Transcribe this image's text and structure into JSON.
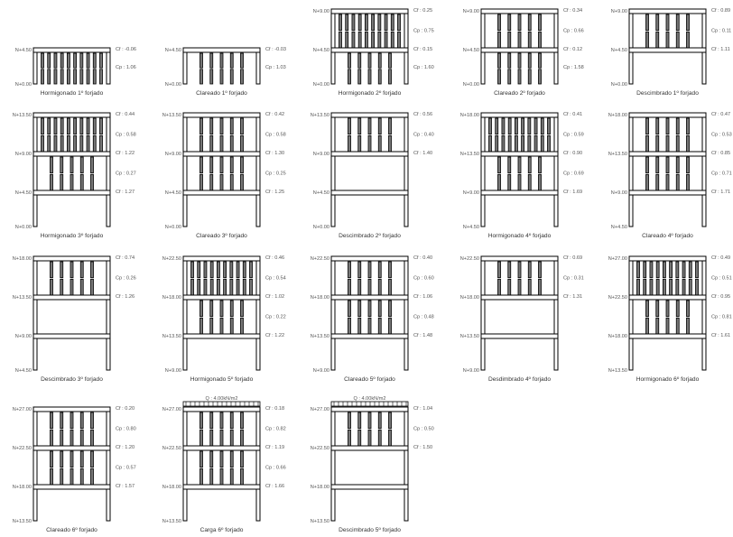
{
  "colors": {
    "line": "#000000",
    "prop_fill": "#777777",
    "text": "#555555"
  },
  "panels": [
    {
      "title": "Hormigonado 1º forjado",
      "levels": [
        "N+4.50",
        "N+0.00"
      ],
      "stories": [
        {
          "props": 10,
          "cp": "Cp : 1.06"
        }
      ],
      "cf": [
        "Cf : -0.06",
        null
      ]
    },
    {
      "title": "Clareado 1º forjado",
      "levels": [
        "N+4.50",
        "N+0.00"
      ],
      "stories": [
        {
          "props": 5,
          "cp": "Cp : 1.03"
        }
      ],
      "cf": [
        "Cf : -0.03",
        null
      ]
    },
    {
      "title": "Hormigonado 2º forjado",
      "levels": [
        "N+9.00",
        "N+4.50",
        "N+0.00"
      ],
      "stories": [
        {
          "props": 10,
          "cp": "Cp : 0.75"
        },
        {
          "props": 5,
          "cp": "Cp : 1.60"
        }
      ],
      "cf": [
        "Cf : 0.25",
        "Cf : 0.15",
        null
      ]
    },
    {
      "title": "Clareado 2º forjado",
      "levels": [
        "N+9.00",
        "N+4.50",
        "N+0.00"
      ],
      "stories": [
        {
          "props": 5,
          "cp": "Cp : 0.66"
        },
        {
          "props": 5,
          "cp": "Cp : 1.58"
        }
      ],
      "cf": [
        "Cf : 0.34",
        "Cf : 0.12",
        null
      ]
    },
    {
      "title": "Descimbrado 1º forjado",
      "levels": [
        "N+9.00",
        "N+4.50",
        "N+0.00"
      ],
      "stories": [
        {
          "props": 5,
          "cp": "Cp : 0.11"
        },
        {
          "props": 0,
          "cp": null
        }
      ],
      "cf": [
        "Cf : 0.89",
        "Cf : 1.11",
        null
      ]
    },
    {
      "title": "Hormigonado 3º forjado",
      "levels": [
        "N+13.50",
        "N+9.00",
        "N+4.50",
        "N+0.00"
      ],
      "stories": [
        {
          "props": 10,
          "cp": "Cp : 0.58"
        },
        {
          "props": 5,
          "cp": "Cp : 0.27"
        },
        {
          "props": 0,
          "cp": null
        }
      ],
      "cf": [
        "Cf : 0.44",
        "Cf : 1.22",
        "Cf : 1.27",
        null
      ]
    },
    {
      "title": "Clareado 3º forjado",
      "levels": [
        "N+13.50",
        "N+9.00",
        "N+4.50",
        "N+0.00"
      ],
      "stories": [
        {
          "props": 5,
          "cp": "Cp : 0.58"
        },
        {
          "props": 5,
          "cp": "Cp : 0.25"
        },
        {
          "props": 0,
          "cp": null
        }
      ],
      "cf": [
        "Cf : 0.42",
        "Cf : 1.30",
        "Cf : 1.25",
        null
      ]
    },
    {
      "title": "Descimbrado 2º forjado",
      "levels": [
        "N+13.50",
        "N+9.00",
        "N+4.50",
        "N+0.00"
      ],
      "stories": [
        {
          "props": 5,
          "cp": "Cp : 0.40"
        },
        {
          "props": 0,
          "cp": null
        },
        {
          "props": 0,
          "cp": null
        }
      ],
      "cf": [
        "Cf : 0.56",
        "Cf : 1.40",
        null,
        null
      ]
    },
    {
      "title": "Hormigonado 4º forjado",
      "levels": [
        "N+18.00",
        "N+13.50",
        "N+9.00",
        "N+4.50"
      ],
      "stories": [
        {
          "props": 10,
          "cp": "Cp : 0.59"
        },
        {
          "props": 5,
          "cp": "Cp : 0.69"
        },
        {
          "props": 0,
          "cp": null
        }
      ],
      "cf": [
        "Cf : 0.41",
        "Cf : 0.90",
        "Cf : 1.69",
        null
      ]
    },
    {
      "title": "Clareado 4º forjado",
      "levels": [
        "N+18.00",
        "N+13.50",
        "N+9.00",
        "N+4.50"
      ],
      "stories": [
        {
          "props": 5,
          "cp": "Cp : 0.53"
        },
        {
          "props": 5,
          "cp": "Cp : 0.71"
        },
        {
          "props": 0,
          "cp": null
        }
      ],
      "cf": [
        "Cf : 0.47",
        "Cf : 0.85",
        "Cf : 1.71",
        null
      ]
    },
    {
      "title": "Descimbrado 3º forjado",
      "levels": [
        "N+18.00",
        "N+13.50",
        "N+9.00",
        "N+4.50"
      ],
      "stories": [
        {
          "props": 5,
          "cp": "Cp : 0.26"
        },
        {
          "props": 0,
          "cp": null
        },
        {
          "props": 0,
          "cp": null
        }
      ],
      "cf": [
        "Cf : 0.74",
        "Cf : 1.26",
        null,
        null
      ]
    },
    {
      "title": "Hormigonado 5º forjado",
      "levels": [
        "N+22.50",
        "N+18.00",
        "N+13.50",
        "N+9.00"
      ],
      "stories": [
        {
          "props": 10,
          "cp": "Cp : 0.54"
        },
        {
          "props": 5,
          "cp": "Cp : 0.22"
        },
        {
          "props": 0,
          "cp": null
        }
      ],
      "cf": [
        "Cf : 0.46",
        "Cf : 1.02",
        "Cf : 1.22",
        null
      ]
    },
    {
      "title": "Clareado 5º forjado",
      "levels": [
        "N+22.50",
        "N+18.00",
        "N+13.50",
        "N+9.00"
      ],
      "stories": [
        {
          "props": 5,
          "cp": "Cp : 0.60"
        },
        {
          "props": 5,
          "cp": "Cp : 0.48"
        },
        {
          "props": 0,
          "cp": null
        }
      ],
      "cf": [
        "Cf : 0.40",
        "Cf : 1.06",
        "Cf : 1.48",
        null
      ]
    },
    {
      "title": "Desdimbrado 4º forjado",
      "levels": [
        "N+22.50",
        "N+18.00",
        "N+13.50",
        "N+9.00"
      ],
      "stories": [
        {
          "props": 5,
          "cp": "Cp : 0.31"
        },
        {
          "props": 0,
          "cp": null
        },
        {
          "props": 0,
          "cp": null
        }
      ],
      "cf": [
        "Cf : 0.69",
        "Cf : 1.31",
        null,
        null
      ]
    },
    {
      "title": "Hormigonado 6º forjado",
      "levels": [
        "N+27.00",
        "N+22.50",
        "N+18.00",
        "N+13.50"
      ],
      "stories": [
        {
          "props": 10,
          "cp": "Cp : 0.51"
        },
        {
          "props": 5,
          "cp": "Cp : 0.81"
        },
        {
          "props": 0,
          "cp": null
        }
      ],
      "cf": [
        "Cf : 0.49",
        "Cf : 0.95",
        "Cf : 1.61",
        null
      ]
    },
    {
      "title": "Clareado 6º forjado",
      "levels": [
        "N+27.00",
        "N+22.50",
        "N+18.00",
        "N+13.50"
      ],
      "stories": [
        {
          "props": 5,
          "cp": "Cp : 0.80"
        },
        {
          "props": 5,
          "cp": "Cp : 0.57"
        },
        {
          "props": 0,
          "cp": null
        }
      ],
      "cf": [
        "Cf : 0.20",
        "Cf : 1.20",
        "Cf : 1.57",
        null
      ]
    },
    {
      "title": "Carga 6º forjado",
      "load": "Q : 4.00kN/m2",
      "levels": [
        "N+27.00",
        "N+22.50",
        "N+18.00",
        "N+13.50"
      ],
      "stories": [
        {
          "props": 5,
          "cp": "Cp : 0.82"
        },
        {
          "props": 5,
          "cp": "Cp : 0.66"
        },
        {
          "props": 0,
          "cp": null
        }
      ],
      "cf": [
        "Cf : 0.18",
        "Cf : 1.19",
        "Cf : 1.66",
        null
      ]
    },
    {
      "title": "Descimbrado 5º forjado",
      "load": "Q : 4.00kN/m2",
      "levels": [
        "N+27.00",
        "N+22.50",
        "N+18.00",
        "N+13.50"
      ],
      "stories": [
        {
          "props": 5,
          "cp": "Cp : 0.50"
        },
        {
          "props": 0,
          "cp": null
        },
        {
          "props": 0,
          "cp": null
        }
      ],
      "cf": [
        "Cf : 1.04",
        "Cf : 1.50",
        null,
        null
      ]
    }
  ]
}
